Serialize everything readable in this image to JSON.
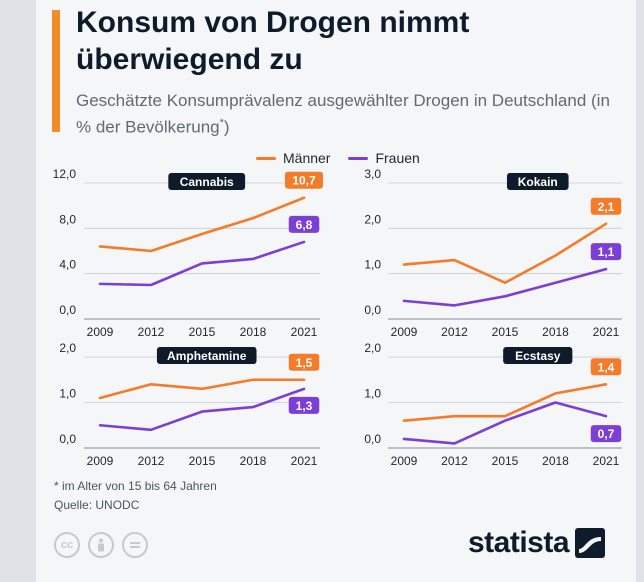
{
  "header": {
    "title": "Konsum von Drogen nimmt überwiegend zu",
    "subtitle": "Geschätzte Konsumprävalenz ausgewählter Drogen in Deutschland (in % der Bevölkerung",
    "subtitle_mark": "*",
    "subtitle_end": ")"
  },
  "legend": {
    "men": "Männer",
    "women": "Frauen"
  },
  "colors": {
    "men": "#f47b2a",
    "women": "#7b3fd6",
    "label_dark": "#0d1b2a",
    "grid": "#c7ccd2"
  },
  "chart_data": [
    {
      "type": "line",
      "title": "Cannabis",
      "x": [
        "2009",
        "2012",
        "2015",
        "2018",
        "2021"
      ],
      "ylim": [
        0,
        12
      ],
      "yticks": [
        "0,0",
        "4,0",
        "8,0",
        "12,0"
      ],
      "yticks_values": [
        0,
        4,
        8,
        12
      ],
      "series": [
        {
          "name": "Männer",
          "values": [
            6.4,
            6.0,
            7.5,
            8.9,
            10.7
          ],
          "end_label": "10,7"
        },
        {
          "name": "Frauen",
          "values": [
            3.1,
            3.0,
            4.9,
            5.3,
            6.8
          ],
          "end_label": "6,8"
        }
      ]
    },
    {
      "type": "line",
      "title": "Kokain",
      "x": [
        "2009",
        "2012",
        "2015",
        "2018",
        "2021"
      ],
      "ylim": [
        0,
        3
      ],
      "yticks": [
        "0,0",
        "1,0",
        "2,0",
        "3,0"
      ],
      "yticks_values": [
        0,
        1,
        2,
        3
      ],
      "series": [
        {
          "name": "Männer",
          "values": [
            1.2,
            1.3,
            0.8,
            1.4,
            2.1
          ],
          "end_label": "2,1"
        },
        {
          "name": "Frauen",
          "values": [
            0.4,
            0.3,
            0.5,
            0.8,
            1.1
          ],
          "end_label": "1,1"
        }
      ]
    },
    {
      "type": "line",
      "title": "Amphetamine",
      "x": [
        "2009",
        "2012",
        "2015",
        "2018",
        "2021"
      ],
      "ylim": [
        0,
        2
      ],
      "yticks": [
        "0,0",
        "1,0",
        "2,0"
      ],
      "yticks_values": [
        0,
        1,
        2
      ],
      "series": [
        {
          "name": "Männer",
          "values": [
            1.1,
            1.4,
            1.3,
            1.5,
            1.5
          ],
          "end_label": "1,5"
        },
        {
          "name": "Frauen",
          "values": [
            0.5,
            0.4,
            0.8,
            0.9,
            1.3
          ],
          "end_label": "1,3"
        }
      ]
    },
    {
      "type": "line",
      "title": "Ecstasy",
      "x": [
        "2009",
        "2012",
        "2015",
        "2018",
        "2021"
      ],
      "ylim": [
        0,
        2
      ],
      "yticks": [
        "0,0",
        "1,0",
        "2,0"
      ],
      "yticks_values": [
        0,
        1,
        2
      ],
      "series": [
        {
          "name": "Männer",
          "values": [
            0.6,
            0.7,
            0.7,
            1.2,
            1.4
          ],
          "end_label": "1,4"
        },
        {
          "name": "Frauen",
          "values": [
            0.2,
            0.1,
            0.6,
            1.0,
            0.7
          ],
          "end_label": "0,7"
        }
      ]
    }
  ],
  "footer": {
    "footnote": "* im Alter von 15 bis 64 Jahren",
    "source": "Quelle: UNODC",
    "brand": "statista",
    "license_icons": [
      "cc-icon",
      "person-icon",
      "equals-icon"
    ]
  }
}
